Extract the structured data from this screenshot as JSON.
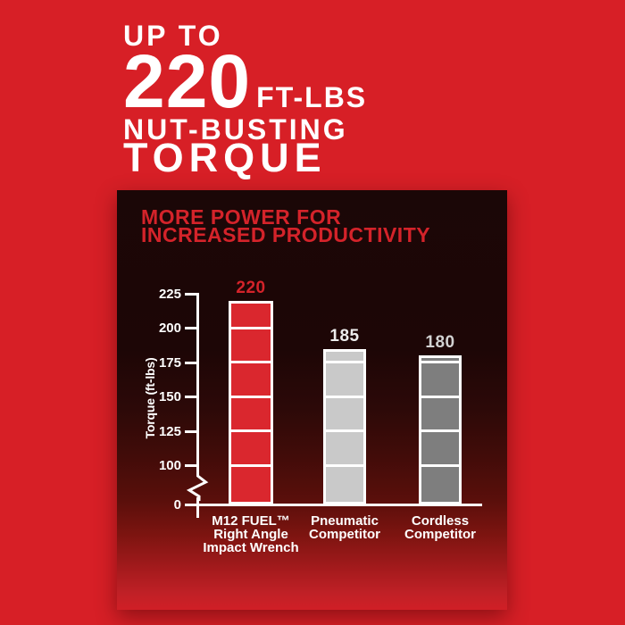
{
  "colors": {
    "background_red": "#d71f26",
    "headline_text": "#ffffff",
    "panel_title_red": "#d4232a",
    "axis_white": "#ffffff"
  },
  "headline": {
    "up_to": "UP TO",
    "big_number": "220",
    "unit": "FT-LBS",
    "line3": "NUT-BUSTING",
    "line4": "TORQUE"
  },
  "panel": {
    "title_line1": "MORE POWER FOR",
    "title_line2": "INCREASED PRODUCTIVITY"
  },
  "chart_data": {
    "type": "bar",
    "title": "MORE POWER FOR INCREASED PRODUCTIVITY",
    "xlabel": "",
    "ylabel": "Torque (ft-lbs)",
    "categories": [
      "M12 FUEL™ Right Angle Impact Wrench",
      "Pneumatic Competitor",
      "Cordless Competitor"
    ],
    "categories_lines": [
      [
        "M12 FUEL™",
        "Right Angle",
        "Impact Wrench"
      ],
      [
        "Pneumatic",
        "Competitor"
      ],
      [
        "Cordless",
        "Competitor"
      ]
    ],
    "values": [
      220,
      185,
      180
    ],
    "value_labels": [
      "220",
      "185",
      "180"
    ],
    "yticks": [
      225,
      200,
      175,
      150,
      125,
      100,
      0
    ],
    "ylim": [
      0,
      225
    ],
    "axis_break_between": [
      0,
      100
    ],
    "segment_lines_at": [
      200,
      175,
      150,
      125,
      100
    ],
    "grid": false,
    "legend": "none",
    "bar_colors": [
      "#da272e",
      "#c9c9c9",
      "#7e7e7e"
    ],
    "value_label_colors": [
      "#d4232a",
      "#ececec",
      "#d2d2d2"
    ]
  }
}
